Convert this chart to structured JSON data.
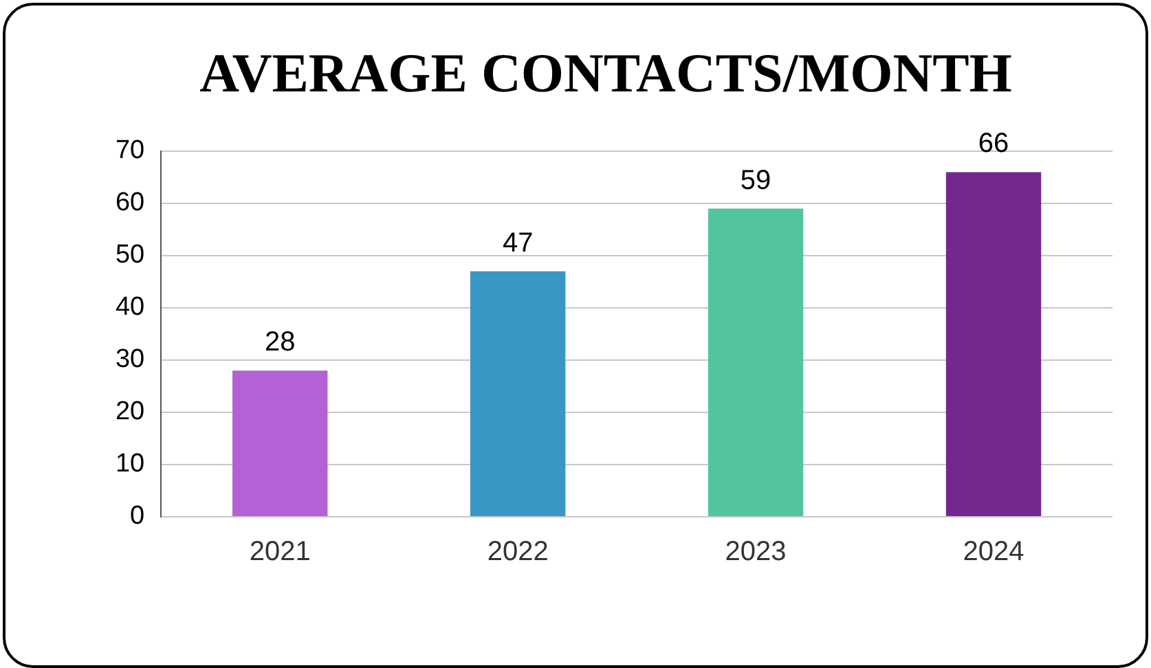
{
  "chart_data": {
    "type": "bar",
    "title": "AVERAGE CONTACTS/MONTH",
    "categories": [
      "2021",
      "2022",
      "2023",
      "2024"
    ],
    "values": [
      28,
      47,
      59,
      66
    ],
    "colors": [
      "#b561d6",
      "#3a96c4",
      "#52c5a0",
      "#73288f"
    ],
    "ylim": [
      0,
      70
    ],
    "yticks": [
      0,
      10,
      20,
      30,
      40,
      50,
      60,
      70
    ],
    "grid": "y",
    "data_labels": true,
    "legend": false
  }
}
